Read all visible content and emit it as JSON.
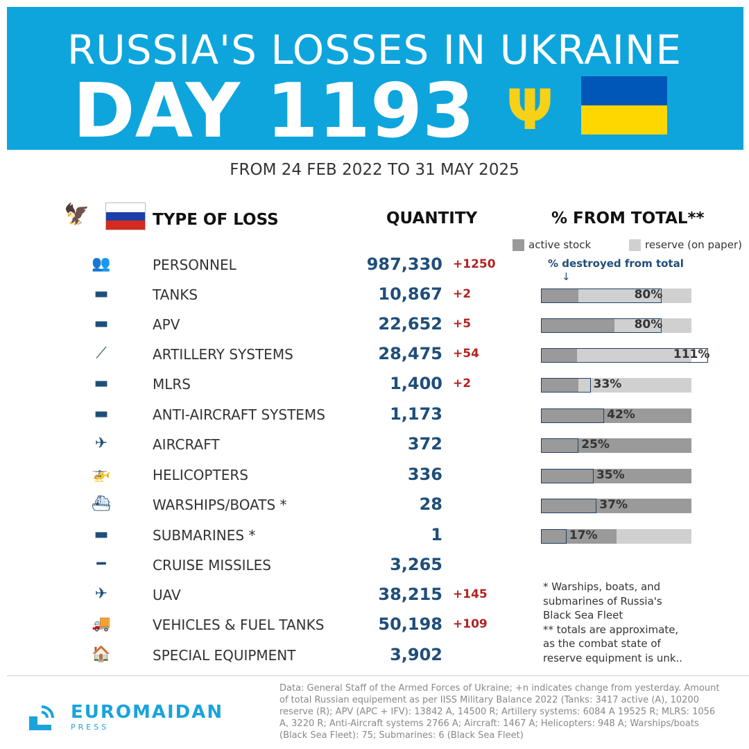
{
  "title": "RUSSIA'S LOSSES IN UKRAINE",
  "day": "DAY 1193",
  "period": "FROM 24 FEB 2022 TO 31 MAY 2025",
  "headers": {
    "type": "TYPE OF LOSS",
    "quantity": "QUANTITY",
    "percent": "% FROM TOTAL**"
  },
  "legend": {
    "active": "active stock",
    "reserve": "reserve (on paper)",
    "destroyed": "% destroyed from total",
    "arrow": "↓"
  },
  "colors": {
    "banner": "#0ea5dd",
    "quantity": "#1f4e79",
    "change": "#b22222",
    "active": "#9a9a9a",
    "reserve": "#d0d0d0"
  },
  "rows": [
    {
      "label": "PERSONNEL",
      "qty": "987,330",
      "chg": "+1250",
      "icon": "personnel-icon",
      "glyph": "👥"
    },
    {
      "label": "TANKS",
      "qty": "10,867",
      "chg": "+2",
      "icon": "tank-icon",
      "glyph": "▬",
      "bar": {
        "active": 0.25,
        "destroyed": 80,
        "pct": "80%"
      }
    },
    {
      "label": "APV",
      "qty": "22,652",
      "chg": "+5",
      "icon": "apv-icon",
      "glyph": "▬",
      "bar": {
        "active": 0.49,
        "destroyed": 80,
        "pct": "80%"
      }
    },
    {
      "label": "ARTILLERY SYSTEMS",
      "qty": "28,475",
      "chg": "+54",
      "icon": "artillery-icon",
      "glyph": "⟋",
      "bar": {
        "active": 0.24,
        "destroyed": 111,
        "pct": "111%"
      }
    },
    {
      "label": "MLRS",
      "qty": "1,400",
      "chg": "+2",
      "icon": "mlrs-icon",
      "glyph": "▬",
      "bar": {
        "active": 0.25,
        "destroyed": 33,
        "pct": "33%"
      }
    },
    {
      "label": "ANTI-AIRCRAFT SYSTEMS",
      "qty": "1,173",
      "chg": "",
      "icon": "anti-aircraft-icon",
      "glyph": "▬",
      "bar": {
        "active": 1,
        "destroyed": 42,
        "pct": "42%"
      }
    },
    {
      "label": "AIRCRAFT",
      "qty": "372",
      "chg": "",
      "icon": "aircraft-icon",
      "glyph": "✈",
      "bar": {
        "active": 1,
        "destroyed": 25,
        "pct": "25%"
      }
    },
    {
      "label": "HELICOPTERS",
      "qty": "336",
      "chg": "",
      "icon": "helicopter-icon",
      "glyph": "🚁",
      "bar": {
        "active": 1,
        "destroyed": 35,
        "pct": "35%"
      }
    },
    {
      "label": "WARSHIPS/BOATS *",
      "qty": "28",
      "chg": "",
      "icon": "warship-icon",
      "glyph": "⛴",
      "bar": {
        "active": 1,
        "destroyed": 37,
        "pct": "37%"
      }
    },
    {
      "label": "SUBMARINES *",
      "qty": "1",
      "chg": "",
      "icon": "submarine-icon",
      "glyph": "▬",
      "bar": {
        "active": 0.5,
        "destroyed": 17,
        "pct": "17%"
      }
    },
    {
      "label": "CRUISE MISSILES",
      "qty": "3,265",
      "chg": "",
      "icon": "missile-icon",
      "glyph": "━"
    },
    {
      "label": "UAV",
      "qty": "38,215",
      "chg": "+145",
      "icon": "uav-icon",
      "glyph": "✈"
    },
    {
      "label": "VEHICLES & FUEL TANKS",
      "qty": "50,198",
      "chg": "+109",
      "icon": "vehicle-icon",
      "glyph": "🚚"
    },
    {
      "label": "SPECIAL EQUIPMENT",
      "qty": "3,902",
      "chg": "",
      "icon": "special-equipment-icon",
      "glyph": "🏠"
    }
  ],
  "notes": [
    "* Warships, boats, and",
    "submarines of Russia's",
    "Black Sea Fleet",
    "** totals are approximate,",
    "as the combat state of",
    "reserve equipment is unk.."
  ],
  "logo": {
    "name": "EUROMAIDAN",
    "sub": "PRESS"
  },
  "source": "Data: General Staff of the Armed Forces of Ukraine; +n indicates change from yesterday. Amount of total Russian equipement as per IISS Military Balance 2022 (Tanks: 3417 active (A), 10200 reserve (R); APV (APC + IFV): 13842 A, 14500 R; Artillery systems: 6084 A 19525 R; MLRS: 1056 A, 3220 R; Anti-Aircraft systems 2766 A; Aircraft: 1467 A; Helicopters: 948 A; Warships/boats (Black Sea Fleet): 75; Submarines: 6 (Black Sea Fleet)"
}
